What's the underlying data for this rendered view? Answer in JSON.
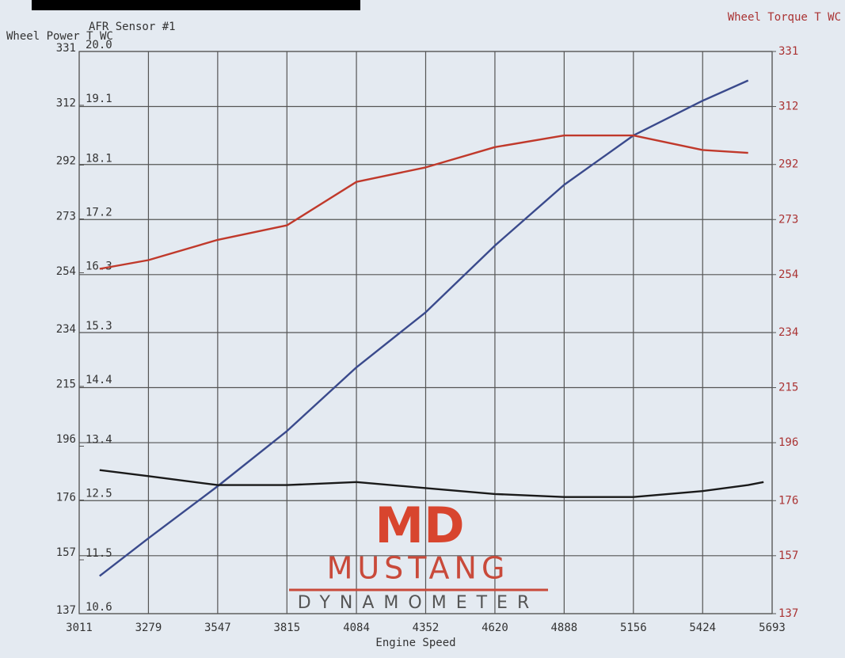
{
  "chart_data": {
    "type": "line",
    "x_label": "Engine Speed",
    "y_label": "Wheel Power T WC",
    "y2_label": "Wheel Torque T WC",
    "y3_label": "AFR Sensor #1",
    "x": [
      3090,
      3279,
      3547,
      3815,
      4084,
      4352,
      4620,
      4888,
      5156,
      5424,
      5600,
      5660
    ],
    "xlim": [
      3011,
      5693
    ],
    "xticks": [
      3011,
      3279,
      3547,
      3815,
      4084,
      4352,
      4620,
      4888,
      5156,
      5424,
      5693
    ],
    "ylim": [
      137,
      331
    ],
    "yticks": [
      137,
      157,
      176,
      196,
      215,
      234,
      254,
      273,
      292,
      312,
      331
    ],
    "y2lim": [
      137,
      331
    ],
    "y2ticks": [
      137,
      157,
      176,
      196,
      215,
      234,
      254,
      273,
      292,
      312,
      331
    ],
    "y3lim": [
      10.6,
      20.0
    ],
    "y3ticks": [
      10.6,
      11.5,
      12.5,
      13.4,
      14.4,
      15.3,
      16.3,
      17.2,
      18.1,
      19.1,
      {
        "value": 20.0,
        "label": "20.0"
      }
    ],
    "grid": true,
    "series": [
      {
        "name": "Wheel Power T WC",
        "color": "#3a4a8c",
        "values": [
          150,
          163,
          181,
          200,
          222,
          241,
          264,
          285,
          302,
          314,
          321,
          null
        ]
      },
      {
        "name": "Wheel Torque T WC",
        "color": "#c0392b",
        "axis": "y2",
        "values": [
          256,
          259,
          266,
          271,
          286,
          291,
          298,
          302,
          302,
          297,
          296,
          null
        ]
      },
      {
        "name": "AFR Sensor #1",
        "color": "#1a1a1a",
        "axis": "y3",
        "values": [
          13.0,
          12.9,
          12.75,
          12.75,
          12.8,
          12.7,
          12.6,
          12.55,
          12.55,
          12.65,
          12.75,
          12.8
        ]
      }
    ]
  },
  "logo": {
    "mark": "MD",
    "name": "MUSTANG",
    "sub": "DYNAMOMETER"
  }
}
